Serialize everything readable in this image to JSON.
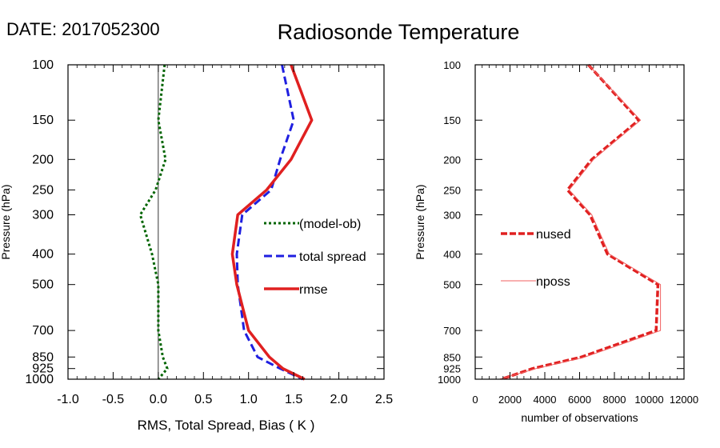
{
  "header": {
    "date_label": "DATE: 2017052300",
    "title": "Radiosonde Temperature"
  },
  "chart_data": [
    {
      "type": "line",
      "id": "left-panel",
      "xlabel": "RMS, Total Spread, Bias ( K )",
      "ylabel": "Pressure (hPa)",
      "xlim": [
        -1.0,
        2.5
      ],
      "ylim": [
        1000,
        100
      ],
      "y_scale": "log",
      "x_ticks": [
        "-1.0",
        "-0.5",
        "0.0",
        "0.5",
        "1.0",
        "1.5",
        "2.0",
        "2.5"
      ],
      "y_ticks": [
        "100",
        "150",
        "200",
        "250",
        "300",
        "400",
        "500",
        "700",
        "850",
        "925",
        "1000"
      ],
      "zero_line": 0.0,
      "legend_position": "right-middle",
      "series": [
        {
          "name": "(model-ob)",
          "color": "#006400",
          "style": "dotted",
          "points": [
            {
              "p": 100,
              "v": 0.07
            },
            {
              "p": 150,
              "v": 0.0
            },
            {
              "p": 200,
              "v": 0.08
            },
            {
              "p": 250,
              "v": -0.03
            },
            {
              "p": 300,
              "v": -0.2
            },
            {
              "p": 400,
              "v": -0.07
            },
            {
              "p": 500,
              "v": 0.0
            },
            {
              "p": 700,
              "v": 0.0
            },
            {
              "p": 850,
              "v": 0.05
            },
            {
              "p": 925,
              "v": 0.1
            },
            {
              "p": 1000,
              "v": 0.0
            }
          ]
        },
        {
          "name": "total spread",
          "color": "#1f1fe0",
          "style": "dashed",
          "points": [
            {
              "p": 100,
              "v": 1.37
            },
            {
              "p": 150,
              "v": 1.5
            },
            {
              "p": 200,
              "v": 1.35
            },
            {
              "p": 250,
              "v": 1.25
            },
            {
              "p": 300,
              "v": 0.93
            },
            {
              "p": 400,
              "v": 0.87
            },
            {
              "p": 500,
              "v": 0.88
            },
            {
              "p": 700,
              "v": 0.95
            },
            {
              "p": 850,
              "v": 1.1
            },
            {
              "p": 925,
              "v": 1.35
            },
            {
              "p": 1000,
              "v": 1.6
            }
          ]
        },
        {
          "name": "rmse",
          "color": "#e02020",
          "style": "solid",
          "points": [
            {
              "p": 100,
              "v": 1.47
            },
            {
              "p": 150,
              "v": 1.7
            },
            {
              "p": 200,
              "v": 1.47
            },
            {
              "p": 250,
              "v": 1.2
            },
            {
              "p": 300,
              "v": 0.88
            },
            {
              "p": 400,
              "v": 0.82
            },
            {
              "p": 500,
              "v": 0.87
            },
            {
              "p": 700,
              "v": 1.0
            },
            {
              "p": 850,
              "v": 1.23
            },
            {
              "p": 925,
              "v": 1.38
            },
            {
              "p": 1000,
              "v": 1.62
            }
          ]
        }
      ]
    },
    {
      "type": "line",
      "id": "right-panel",
      "xlabel": "number of observations",
      "ylabel": "Pressure (hPa)",
      "xlim": [
        0,
        12000
      ],
      "ylim": [
        1000,
        100
      ],
      "y_scale": "log",
      "x_ticks": [
        "0",
        "2000",
        "4000",
        "6000",
        "8000",
        "10000",
        "12000"
      ],
      "y_ticks": [
        "100",
        "150",
        "200",
        "250",
        "300",
        "400",
        "500",
        "700",
        "850",
        "925",
        "1000"
      ],
      "legend_position": "left-middle",
      "series": [
        {
          "name": "nused",
          "color": "#e02020",
          "style": "dashed-thick",
          "points": [
            {
              "p": 100,
              "v": 6500
            },
            {
              "p": 150,
              "v": 9400
            },
            {
              "p": 200,
              "v": 6700
            },
            {
              "p": 250,
              "v": 5300
            },
            {
              "p": 300,
              "v": 6600
            },
            {
              "p": 400,
              "v": 7600
            },
            {
              "p": 500,
              "v": 10500
            },
            {
              "p": 700,
              "v": 10400
            },
            {
              "p": 850,
              "v": 6100
            },
            {
              "p": 925,
              "v": 3300
            },
            {
              "p": 1000,
              "v": 1500
            }
          ]
        },
        {
          "name": "nposs",
          "color": "#f06060",
          "style": "thin",
          "points": [
            {
              "p": 100,
              "v": 6500
            },
            {
              "p": 150,
              "v": 9500
            },
            {
              "p": 200,
              "v": 6800
            },
            {
              "p": 250,
              "v": 5400
            },
            {
              "p": 300,
              "v": 6700
            },
            {
              "p": 400,
              "v": 7700
            },
            {
              "p": 500,
              "v": 10650
            },
            {
              "p": 700,
              "v": 10650
            },
            {
              "p": 850,
              "v": 6300
            },
            {
              "p": 925,
              "v": 3500
            },
            {
              "p": 1000,
              "v": 1400
            }
          ]
        }
      ]
    }
  ]
}
